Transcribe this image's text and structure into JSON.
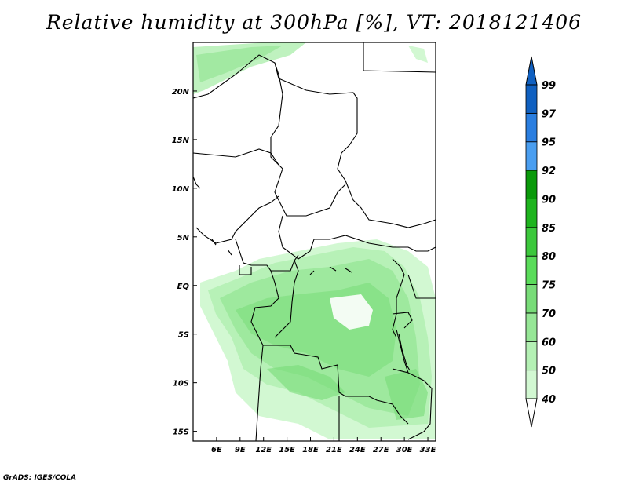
{
  "title": "Relative humidity at 300hPa [%], VT: 2018121406",
  "credit": "GrADS: IGES/COLA",
  "map": {
    "lon_range": [
      3,
      34
    ],
    "lat_range": [
      -16,
      25
    ],
    "lon_ticks": [
      {
        "value": 6,
        "label": "6E"
      },
      {
        "value": 9,
        "label": "9E"
      },
      {
        "value": 12,
        "label": "12E"
      },
      {
        "value": 15,
        "label": "15E"
      },
      {
        "value": 18,
        "label": "18E"
      },
      {
        "value": 21,
        "label": "21E"
      },
      {
        "value": 24,
        "label": "24E"
      },
      {
        "value": 27,
        "label": "27E"
      },
      {
        "value": 30,
        "label": "30E"
      },
      {
        "value": 33,
        "label": "33E"
      }
    ],
    "lat_ticks": [
      {
        "value": 20,
        "label": "20N"
      },
      {
        "value": 15,
        "label": "15N"
      },
      {
        "value": 10,
        "label": "10N"
      },
      {
        "value": 5,
        "label": "5N"
      },
      {
        "value": 0,
        "label": "EQ"
      },
      {
        "value": -5,
        "label": "5S"
      },
      {
        "value": -10,
        "label": "10S"
      },
      {
        "value": -15,
        "label": "15S"
      }
    ]
  },
  "colorbar": {
    "levels": [
      "40",
      "50",
      "60",
      "70",
      "75",
      "80",
      "85",
      "90",
      "92",
      "95",
      "97",
      "99"
    ],
    "colors": [
      "#f0fff0",
      "#d2f8d2",
      "#b4f0b4",
      "#96e696",
      "#78dc78",
      "#5adc5a",
      "#3cc83c",
      "#1eb41e",
      "#0a9a0a",
      "#4a9ef0",
      "#2a7ee0",
      "#1060c0"
    ],
    "over_color": "#1060c0",
    "under_color": "#ffffff"
  }
}
